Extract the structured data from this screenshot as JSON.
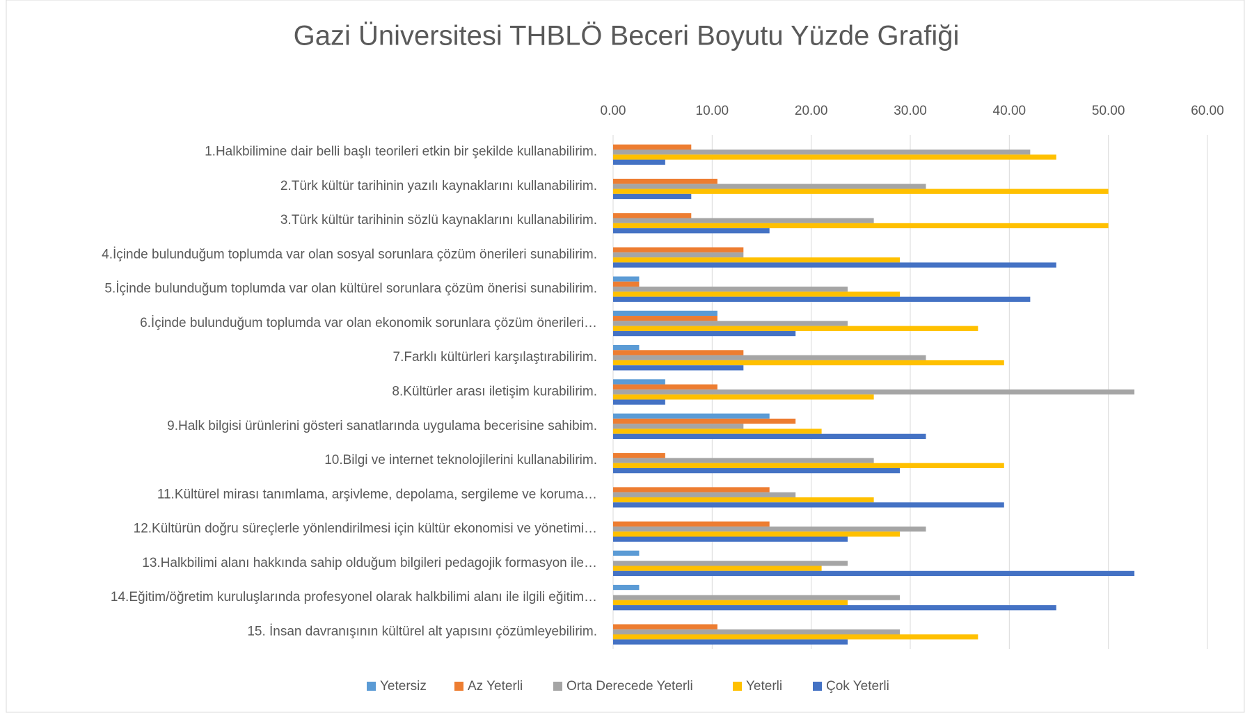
{
  "chart_data": {
    "type": "hbar",
    "title": "Gazi Üniversitesi THBLÖ Beceri Boyutu Yüzde Grafiği",
    "categories": [
      "1.Halkbilimine dair belli başlı teorileri etkin bir şekilde kullanabilirim.",
      "2.Türk kültür tarihinin yazılı kaynaklarını kullanabilirim.",
      "3.Türk kültür tarihinin sözlü kaynaklarını kullanabilirim.",
      "4.İçinde bulunduğum toplumda var olan sosyal sorunlara çözüm önerileri sunabilirim.",
      "5.İçinde bulunduğum toplumda var olan kültürel sorunlara çözüm önerisi sunabilirim.",
      "6.İçinde bulunduğum toplumda var olan ekonomik sorunlara çözüm önerileri…",
      "7.Farklı kültürleri karşılaştırabilirim.",
      "8.Kültürler arası iletişim kurabilirim.",
      "9.Halk bilgisi ürünlerini gösteri sanatlarında uygulama becerisine sahibim.",
      "10.Bilgi ve internet teknolojilerini kullanabilirim.",
      "11.Kültürel mirası tanımlama, arşivleme, depolama, sergileme ve koruma…",
      "12.Kültürün doğru süreçlerle yönlendirilmesi için kültür ekonomisi ve yönetimi…",
      "13.Halkbilimi alanı hakkında sahip olduğum bilgileri pedagojik formasyon ile…",
      "14.Eğitim/öğretim kuruluşlarında profesyonel olarak halkbilimi alanı ile ilgili eğitim…",
      "15. İnsan davranışının kültürel alt yapısını çözümleyebilirim."
    ],
    "series": [
      {
        "name": "Yetersiz",
        "color": "#5b9bd5",
        "values": [
          0,
          0,
          0,
          0,
          2.63,
          10.53,
          2.63,
          5.26,
          15.79,
          0,
          0,
          0,
          2.63,
          2.63,
          0
        ]
      },
      {
        "name": "Az Yeterli",
        "color": "#ed7d31",
        "values": [
          7.89,
          10.53,
          7.89,
          13.16,
          2.63,
          10.53,
          13.16,
          10.53,
          18.42,
          5.26,
          15.79,
          15.79,
          0,
          0,
          10.53
        ]
      },
      {
        "name": "Orta Derecede Yeterli",
        "color": "#a5a5a5",
        "values": [
          42.11,
          31.58,
          26.32,
          13.16,
          23.68,
          23.68,
          31.58,
          52.63,
          13.16,
          26.32,
          18.42,
          31.58,
          23.68,
          28.95,
          28.95
        ]
      },
      {
        "name": "Yeterli",
        "color": "#ffc000",
        "values": [
          44.74,
          50,
          50,
          28.95,
          28.95,
          36.84,
          39.47,
          26.32,
          21.05,
          39.47,
          26.32,
          28.95,
          21.05,
          23.68,
          36.84
        ]
      },
      {
        "name": "Çok Yeterli",
        "color": "#4472c4",
        "values": [
          5.26,
          7.89,
          15.79,
          44.74,
          42.11,
          18.42,
          13.16,
          5.26,
          31.58,
          28.95,
          39.47,
          23.68,
          52.63,
          44.74,
          23.68
        ]
      }
    ],
    "xlim": [
      0,
      60
    ],
    "xticks": [
      {
        "value": 0,
        "label": "0.00"
      },
      {
        "value": 10,
        "label": "10.00"
      },
      {
        "value": 20,
        "label": "20.00"
      },
      {
        "value": 30,
        "label": "30.00"
      },
      {
        "value": 40,
        "label": "40.00"
      },
      {
        "value": 50,
        "label": "50.00"
      },
      {
        "value": 60,
        "label": "60.00"
      }
    ],
    "grid": true,
    "legend": "bottom"
  }
}
